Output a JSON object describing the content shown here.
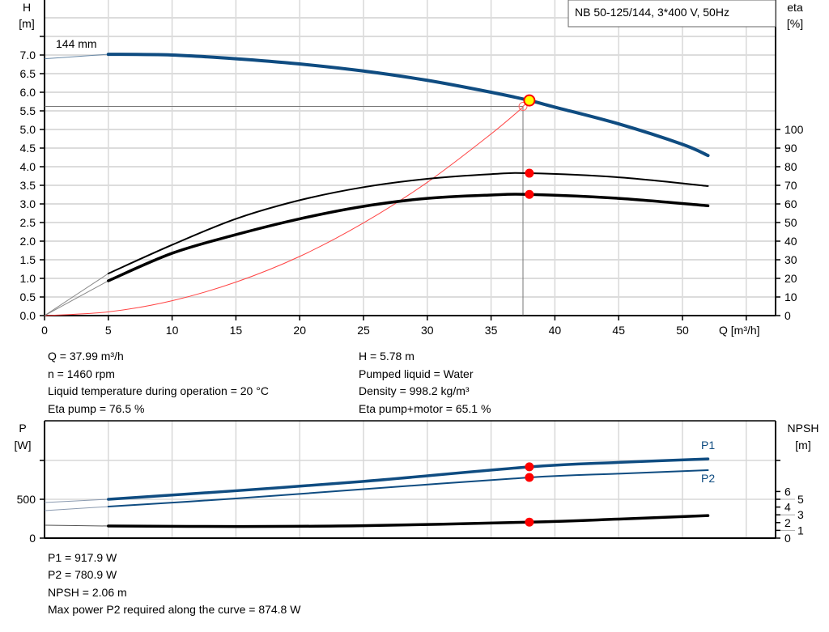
{
  "chart_data": [
    {
      "type": "line",
      "title": "NB 50-125/144, 3*400 V, 50Hz",
      "curve_label": "144 mm",
      "xlabel": "Q [m³/h]",
      "ylabel_left": [
        "H",
        "[m]"
      ],
      "ylabel_right": [
        "eta",
        "[%]"
      ],
      "xlim": [
        0,
        57.5
      ],
      "ylim_left": [
        0,
        8.5
      ],
      "ylim_right": [
        0,
        100
      ],
      "grid": true,
      "x_ticks": [
        0,
        5,
        10,
        15,
        20,
        25,
        30,
        35,
        40,
        45,
        50
      ],
      "y_ticks_left": [
        "0.0",
        "0.5",
        "1.0",
        "1.5",
        "2.0",
        "2.5",
        "3.0",
        "3.5",
        "4.0",
        "4.5",
        "5.0",
        "5.5",
        "6.0",
        "6.5",
        "7.0"
      ],
      "y_ticks_right": [
        0,
        10,
        20,
        30,
        40,
        50,
        60,
        70,
        80,
        90,
        100
      ],
      "series": [
        {
          "id": "H",
          "axis": "left",
          "color": "#0f4c81",
          "x": [
            0,
            5,
            10,
            15,
            20,
            25,
            30,
            35,
            38,
            40,
            45,
            50,
            52
          ],
          "y": [
            6.9,
            7.02,
            7.0,
            6.9,
            6.76,
            6.57,
            6.32,
            6.0,
            5.78,
            5.6,
            5.15,
            4.6,
            4.3
          ]
        },
        {
          "id": "eta_pump",
          "axis": "right",
          "color": "#000000",
          "x": [
            0,
            5,
            10,
            15,
            20,
            25,
            30,
            35,
            38,
            45,
            52
          ],
          "y": [
            0,
            22.6,
            38,
            52,
            62,
            69,
            73.5,
            76,
            76.5,
            74.3,
            69.6
          ]
        },
        {
          "id": "eta_pump_motor",
          "axis": "right",
          "color": "#000000",
          "x": [
            0,
            5,
            10,
            15,
            20,
            25,
            30,
            35,
            38,
            45,
            52
          ],
          "y": [
            0,
            18.7,
            33.5,
            43.5,
            52,
            58.7,
            63,
            64.8,
            65.1,
            63,
            59
          ]
        },
        {
          "id": "system_curve",
          "axis": "left",
          "color": "#ff4444",
          "x": [
            0,
            5,
            10,
            15,
            20,
            25,
            30,
            35,
            37.5
          ],
          "y": [
            0,
            0.1,
            0.4,
            0.9,
            1.59,
            2.49,
            3.58,
            4.88,
            5.6
          ]
        }
      ],
      "duty_point": {
        "Q": 38.0,
        "H": 5.78,
        "eta_pump": 76.5,
        "eta_pump_motor": 65.1
      },
      "requested_point": {
        "Q": 37.5,
        "H": 5.62
      }
    },
    {
      "type": "line",
      "ylabel_left": [
        "P",
        "[W]"
      ],
      "ylabel_right": [
        "NPSH",
        "[m]"
      ],
      "xlim": [
        0,
        57.5
      ],
      "ylim_left": [
        0,
        1500
      ],
      "ylim_right": [
        0,
        15
      ],
      "grid": true,
      "y_ticks_left": [
        0,
        500
      ],
      "y_ticks_right": [
        0,
        1,
        2,
        3,
        4,
        5,
        6
      ],
      "series": [
        {
          "name": "P1",
          "axis": "left",
          "color": "#0f4c81",
          "x": [
            0,
            5,
            15,
            25,
            38,
            45,
            52
          ],
          "y": [
            458,
            500,
            610,
            730,
            917,
            975,
            1020
          ]
        },
        {
          "name": "P2",
          "axis": "left",
          "color": "#0f4c81",
          "x": [
            0,
            5,
            15,
            25,
            38,
            45,
            52
          ],
          "y": [
            354,
            406,
            510,
            630,
            781,
            830,
            875
          ]
        },
        {
          "id": "NPSH",
          "axis": "right",
          "color": "#000000",
          "x": [
            0,
            5,
            15,
            25,
            38,
            45,
            52
          ],
          "y": [
            1.67,
            1.56,
            1.5,
            1.6,
            2.06,
            2.45,
            2.9
          ]
        }
      ],
      "duty_point": {
        "Q": 38.0,
        "P1": 917.9,
        "P2": 780.9,
        "NPSH": 2.06
      }
    }
  ],
  "info_top": {
    "left": [
      "Q = 37.99 m³/h",
      "n = 1460 rpm",
      "Liquid temperature during operation = 20 °C",
      "Eta pump = 76.5 %"
    ],
    "right": [
      "H = 5.78 m",
      "Pumped liquid = Water",
      "Density = 998.2 kg/m³",
      "Eta pump+motor = 65.1 %"
    ]
  },
  "info_bottom": [
    "P1 = 917.9 W",
    "P2 = 780.9 W",
    "NPSH = 2.06 m",
    "Max power P2 required along the curve = 874.8 W"
  ],
  "colors": {
    "blue": "#0f4c81",
    "red": "#ff0000",
    "yellow": "#ffff00",
    "grid": "#d8d8d8"
  }
}
